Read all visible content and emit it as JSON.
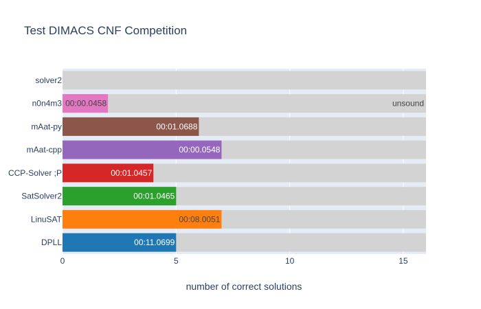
{
  "chart_data": {
    "type": "bar",
    "orientation": "horizontal",
    "title": "Test DIMACS CNF Competition",
    "xlabel": "number of correct solutions",
    "ylabel": "",
    "xlim": [
      0,
      16
    ],
    "xticks": [
      0,
      5,
      10,
      15
    ],
    "grid": true,
    "legend": "none",
    "background_bar_value": 16,
    "background_bar_color": "#d3d3d3",
    "categories": [
      "DPLL",
      "LinuSAT",
      "SatSolver2",
      "CCP-Solver ;P",
      "mAat-cpp",
      "mAat-py",
      "n0n4m3",
      "solver2"
    ],
    "values": [
      5,
      7,
      5,
      4,
      7,
      6,
      2,
      0
    ],
    "bar_labels": [
      "00:11.0699",
      "00:08.0051",
      "00:01.0465",
      "00:01.0457",
      "00:00.0548",
      "00:01.0688",
      "00:00.0458",
      ""
    ],
    "bar_label_colors": [
      "#ffffff",
      "#444444",
      "#ffffff",
      "#ffffff",
      "#ffffff",
      "#ffffff",
      "#444444",
      "#444444"
    ],
    "colors": [
      "#1f77b4",
      "#ff7f0e",
      "#2ca02c",
      "#d62728",
      "#9467bd",
      "#8c564b",
      "#e377c2",
      "#7f7f7f"
    ],
    "background_labels": [
      "",
      "",
      "",
      "",
      "",
      "",
      "unsound",
      ""
    ]
  }
}
